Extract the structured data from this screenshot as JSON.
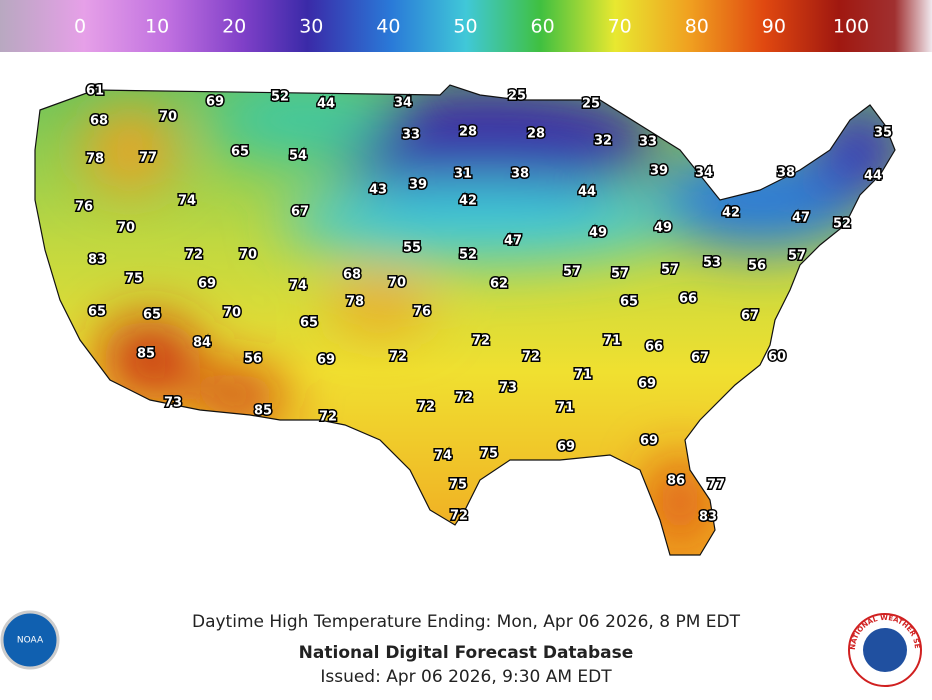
{
  "colorbar": {
    "ticks": [
      0,
      10,
      20,
      30,
      40,
      50,
      60,
      70,
      80,
      90,
      100
    ]
  },
  "temperatures": [
    61,
    69,
    52,
    44,
    34,
    25,
    25,
    68,
    70,
    33,
    28,
    28,
    32,
    33,
    35,
    78,
    77,
    65,
    54,
    31,
    38,
    39,
    34,
    38,
    44,
    76,
    74,
    67,
    43,
    39,
    42,
    44,
    42,
    47,
    52,
    70,
    49,
    49,
    83,
    72,
    70,
    55,
    52,
    47,
    57,
    75,
    69,
    74,
    68,
    70,
    62,
    57,
    57,
    57,
    53,
    56,
    65,
    65,
    70,
    78,
    76,
    65,
    65,
    66,
    67,
    84,
    72,
    71,
    66,
    85,
    56,
    69,
    72,
    72,
    67,
    60,
    73,
    71,
    69,
    73,
    85,
    72,
    72,
    72,
    71,
    69,
    69,
    74,
    75,
    86,
    77,
    75,
    72,
    83
  ],
  "footer": {
    "caption": "Daytime High Temperature Ending: Mon, Apr 06 2026, 8 PM EDT",
    "title": "National Digital Forecast Database",
    "issued": "Issued: Apr 06 2026, 9:30 AM EDT"
  },
  "logos": {
    "noaa": "NOAA",
    "nws": "NATIONAL WEATHER SERVICE"
  }
}
